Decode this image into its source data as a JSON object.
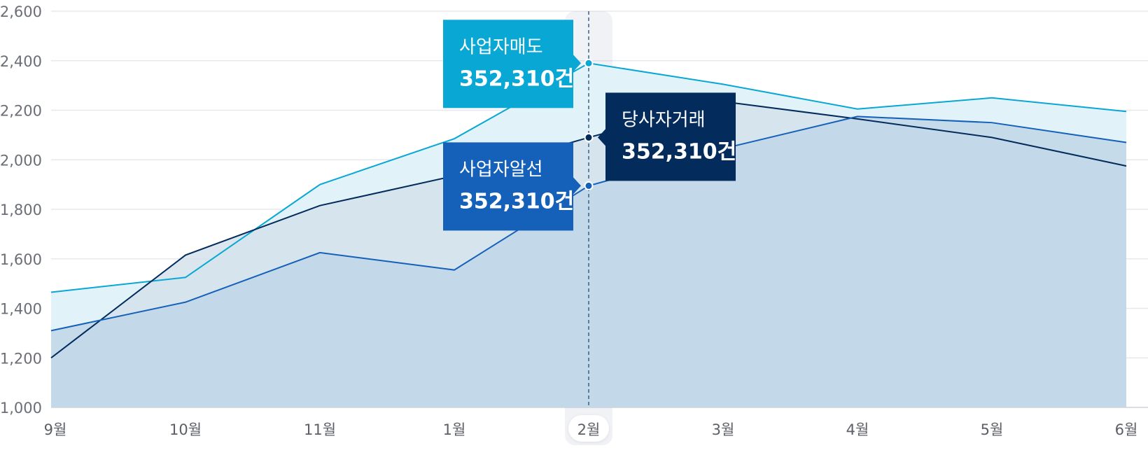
{
  "chart_data": {
    "type": "area",
    "categories": [
      "9월",
      "10월",
      "11월",
      "1월",
      "2월",
      "3월",
      "4월",
      "5월",
      "6월"
    ],
    "ylim": [
      1000,
      2600
    ],
    "yticks": [
      "1,000",
      "1,200",
      "1,400",
      "1,600",
      "1,800",
      "2,000",
      "2,200",
      "2,400",
      "2,600"
    ],
    "grid": true,
    "highlight_category": "2월",
    "series": [
      {
        "name": "사업자매도",
        "color": "#09a7d4",
        "fill": "#e1f3f9",
        "values": [
          1465,
          1525,
          1900,
          2085,
          2390,
          2305,
          2205,
          2250,
          2195
        ]
      },
      {
        "name": "당사자거래",
        "color": "#032b5c",
        "fill": "#d3e0ea",
        "values": [
          1200,
          1615,
          1815,
          1935,
          2090,
          2235,
          2165,
          2090,
          1975
        ]
      },
      {
        "name": "사업자알선",
        "color": "#1560b9",
        "fill": "#bed5e6",
        "values": [
          1310,
          1425,
          1625,
          1555,
          1895,
          2045,
          2175,
          2150,
          2070
        ]
      }
    ],
    "tooltips": [
      {
        "series": "사업자매도",
        "label": "사업자매도",
        "value": "352,310건",
        "color": "#09a7d4"
      },
      {
        "series": "당사자거래",
        "label": "당사자거래",
        "value": "352,310건",
        "color": "#032b5c"
      },
      {
        "series": "사업자알선",
        "label": "사업자알선",
        "value": "352,310건",
        "color": "#1560b9"
      }
    ]
  }
}
